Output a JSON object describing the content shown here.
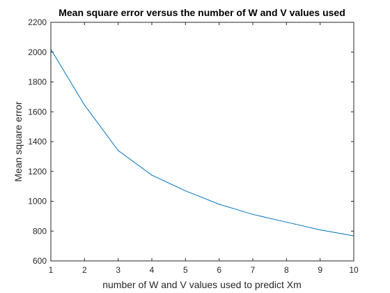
{
  "chart_data": {
    "type": "line",
    "title": "Mean square error versus the number of W and V values used",
    "xlabel": "number of W and V values used to predict Xm",
    "ylabel": "Mean square error",
    "xlim": [
      1,
      10
    ],
    "ylim": [
      600,
      2200
    ],
    "x_ticks": [
      1,
      2,
      3,
      4,
      5,
      6,
      7,
      8,
      9,
      10
    ],
    "y_ticks": [
      600,
      800,
      1000,
      1200,
      1400,
      1600,
      1800,
      2000,
      2200
    ],
    "grid": false,
    "series": [
      {
        "x": [
          1,
          2,
          3,
          4,
          5,
          6,
          7,
          8,
          9,
          10
        ],
        "values": [
          2020,
          1645,
          1340,
          1175,
          1070,
          980,
          912,
          860,
          808,
          768
        ],
        "color": "#0072BD"
      }
    ]
  }
}
